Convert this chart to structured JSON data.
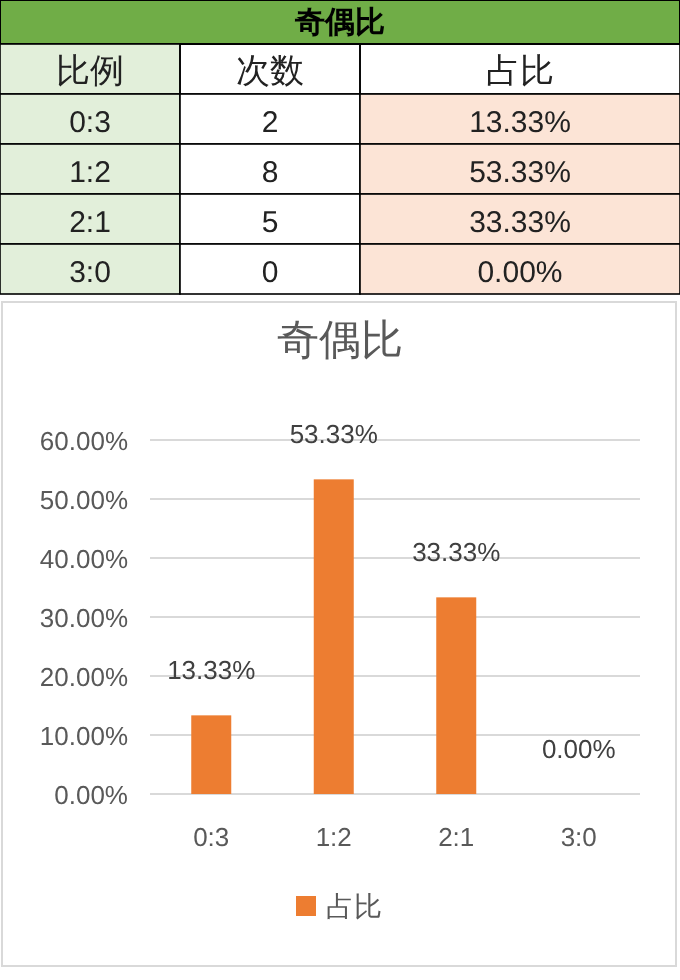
{
  "chart_data": [
    {
      "type": "other",
      "title": "奇偶比",
      "categories": [
        "比例",
        "次数",
        "占比"
      ],
      "cell_labels": [
        [
          "0:3",
          "2",
          "13.33%"
        ],
        [
          "1:2",
          "8",
          "53.33%"
        ],
        [
          "2:1",
          "5",
          "33.33%"
        ],
        [
          "3:0",
          "0",
          "0.00%"
        ]
      ],
      "colors": [
        "#e2efda",
        "#ffffff",
        "#fce4d6"
      ]
    },
    {
      "type": "bar",
      "title": "奇偶比",
      "categories": [
        "0:3",
        "1:2",
        "2:1",
        "3:0"
      ],
      "series": [
        {
          "name": "占比",
          "color": "#ed7d31",
          "values": [
            13.33,
            53.33,
            33.33,
            0
          ]
        }
      ],
      "value_labels": [
        "13.33%",
        "53.33%",
        "33.33%",
        "0.00%"
      ],
      "ylim": [
        0,
        60
      ],
      "yticks": [
        {
          "value": 0,
          "label": "0.00%"
        },
        {
          "value": 10,
          "label": "10.00%"
        },
        {
          "value": 20,
          "label": "20.00%"
        },
        {
          "value": 30,
          "label": "30.00%"
        },
        {
          "value": 40,
          "label": "40.00%"
        },
        {
          "value": 50,
          "label": "50.00%"
        },
        {
          "value": 60,
          "label": "60.00%"
        }
      ],
      "grid": "y",
      "legend": "bottom"
    }
  ]
}
